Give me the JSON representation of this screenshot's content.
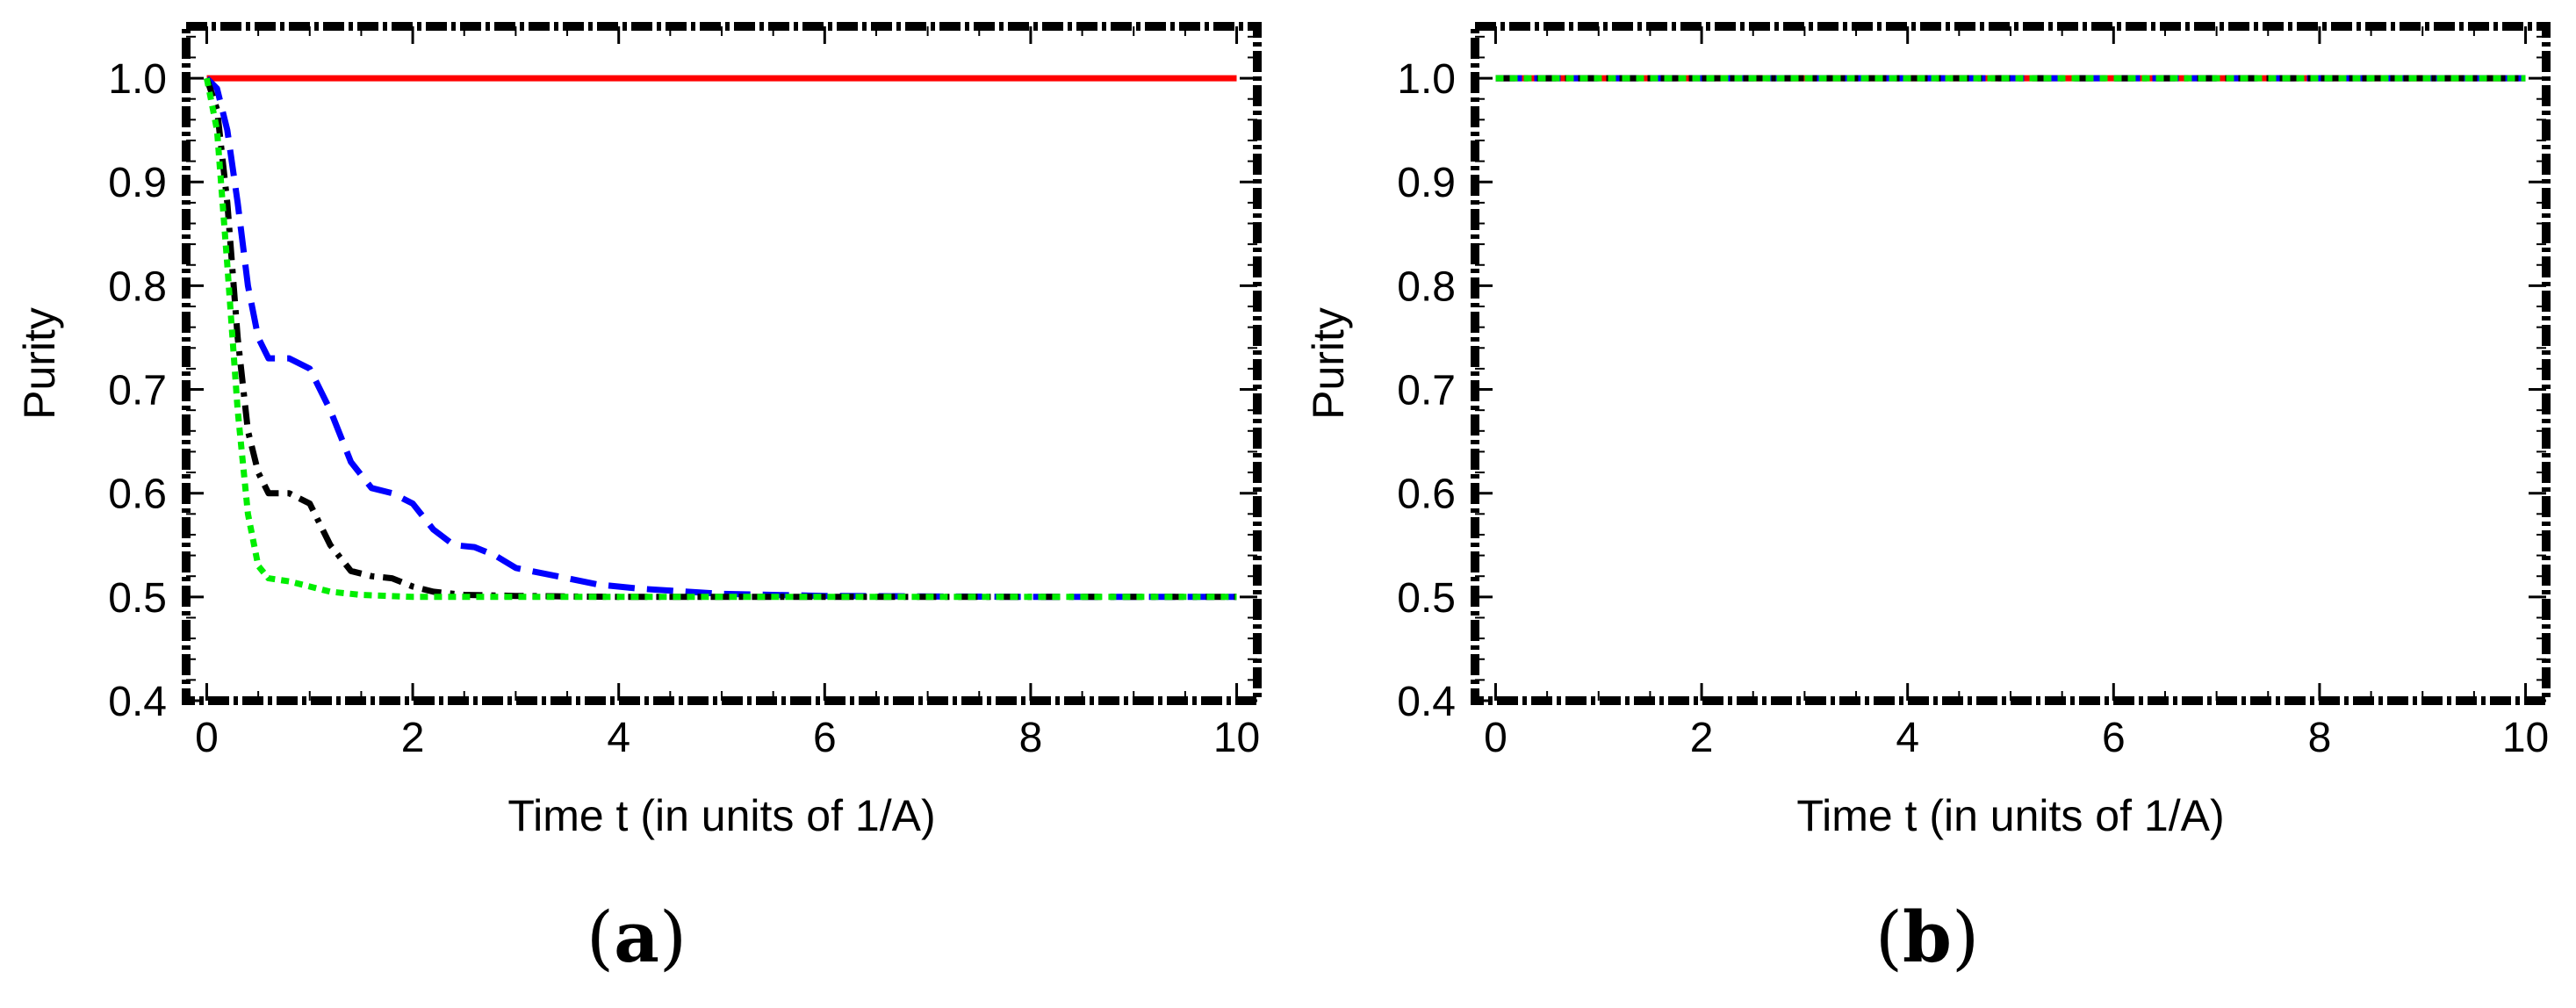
{
  "chart_data": [
    {
      "type": "line",
      "panel_label": "(a)",
      "panel_letter": "a",
      "xlabel": "Time t (in units of 1/A)",
      "ylabel": "Purity",
      "xlim": [
        -0.2,
        10.2
      ],
      "ylim": [
        0.4,
        1.05
      ],
      "xticks": [
        "0",
        "2",
        "4",
        "6",
        "8",
        "10"
      ],
      "yticks": [
        "0.4",
        "0.5",
        "0.6",
        "0.7",
        "0.8",
        "0.9",
        "1.0"
      ],
      "grid": false,
      "legend": "none",
      "frame": "dotted-dashed black",
      "series": [
        {
          "color": "#ff0000",
          "style": "solid",
          "x": [
            0,
            10
          ],
          "y": [
            1.0,
            1.0
          ]
        },
        {
          "color": "#0000ff",
          "style": "dashed",
          "x": [
            0,
            0.1,
            0.2,
            0.3,
            0.4,
            0.5,
            0.6,
            0.8,
            1.0,
            1.2,
            1.4,
            1.6,
            1.8,
            2.0,
            2.2,
            2.4,
            2.6,
            2.8,
            3.0,
            3.4,
            3.8,
            4.2,
            5.0,
            6.0,
            8.0,
            10.0
          ],
          "y": [
            1.0,
            0.99,
            0.95,
            0.88,
            0.8,
            0.75,
            0.73,
            0.73,
            0.72,
            0.68,
            0.63,
            0.605,
            0.6,
            0.59,
            0.565,
            0.55,
            0.548,
            0.54,
            0.528,
            0.52,
            0.512,
            0.508,
            0.503,
            0.501,
            0.5,
            0.5
          ]
        },
        {
          "color": "#000000",
          "style": "dash-dot",
          "x": [
            0,
            0.1,
            0.2,
            0.3,
            0.4,
            0.5,
            0.6,
            0.8,
            1.0,
            1.2,
            1.4,
            1.6,
            1.8,
            2.0,
            2.2,
            2.5,
            3.0,
            4.0,
            6.0,
            10.0
          ],
          "y": [
            1.0,
            0.97,
            0.88,
            0.75,
            0.66,
            0.62,
            0.6,
            0.6,
            0.59,
            0.55,
            0.525,
            0.52,
            0.518,
            0.51,
            0.505,
            0.502,
            0.501,
            0.5,
            0.5,
            0.5
          ]
        },
        {
          "color": "#00ee00",
          "style": "dotted",
          "x": [
            0,
            0.1,
            0.2,
            0.3,
            0.4,
            0.5,
            0.6,
            0.8,
            1.0,
            1.2,
            1.5,
            2.0,
            3.0,
            10.0
          ],
          "y": [
            1.0,
            0.95,
            0.82,
            0.68,
            0.58,
            0.53,
            0.518,
            0.515,
            0.51,
            0.505,
            0.502,
            0.5,
            0.5,
            0.5
          ]
        }
      ]
    },
    {
      "type": "line",
      "panel_label": "(b)",
      "panel_letter": "b",
      "xlabel": "Time t (in units of 1/A)",
      "ylabel": "Purity",
      "xlim": [
        -0.2,
        10.2
      ],
      "ylim": [
        0.4,
        1.05
      ],
      "xticks": [
        "0",
        "2",
        "4",
        "6",
        "8",
        "10"
      ],
      "yticks": [
        "0.4",
        "0.5",
        "0.6",
        "0.7",
        "0.8",
        "0.9",
        "1.0"
      ],
      "grid": false,
      "legend": "none",
      "frame": "dotted-dashed black",
      "series": [
        {
          "color": "#ff0000",
          "style": "solid",
          "x": [
            0,
            10
          ],
          "y": [
            1.0,
            1.0
          ]
        },
        {
          "color": "#0000ff",
          "style": "dashed",
          "x": [
            0,
            10
          ],
          "y": [
            1.0,
            1.0
          ]
        },
        {
          "color": "#000000",
          "style": "dash-dot",
          "x": [
            0,
            10
          ],
          "y": [
            1.0,
            1.0
          ]
        },
        {
          "color": "#00ee00",
          "style": "dotted",
          "x": [
            0,
            10
          ],
          "y": [
            1.0,
            1.0
          ]
        }
      ]
    }
  ]
}
